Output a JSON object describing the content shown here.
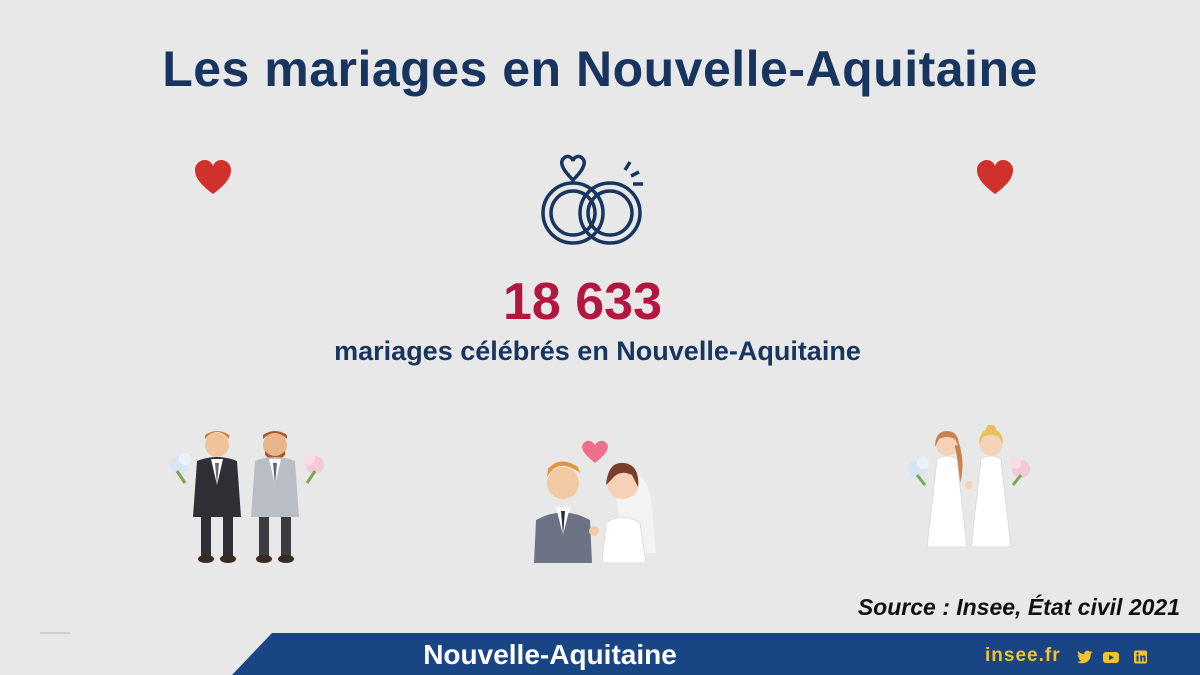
{
  "title": "Les mariages en Nouvelle-Aquitaine",
  "headline": {
    "value": "18 633",
    "caption": "mariages célébrés en Nouvelle-Aquitaine"
  },
  "source": "Source : Insee, État civil 2021",
  "footer": {
    "region": "Nouvelle-Aquitaine",
    "site": "insee.fr",
    "social_icons": [
      "twitter-icon",
      "youtube-icon",
      "linkedin-icon"
    ]
  },
  "illustrations": [
    "heart-icon",
    "wedding-rings-icon",
    "two-grooms-illustration",
    "bride-and-groom-illustration",
    "two-brides-illustration"
  ],
  "colors": {
    "background": "#e8e8e9",
    "title": "#17355e",
    "number": "#b3163e",
    "heart": "#d0312d",
    "footer_band": "#1a4585",
    "footer_site": "#f2c230"
  }
}
